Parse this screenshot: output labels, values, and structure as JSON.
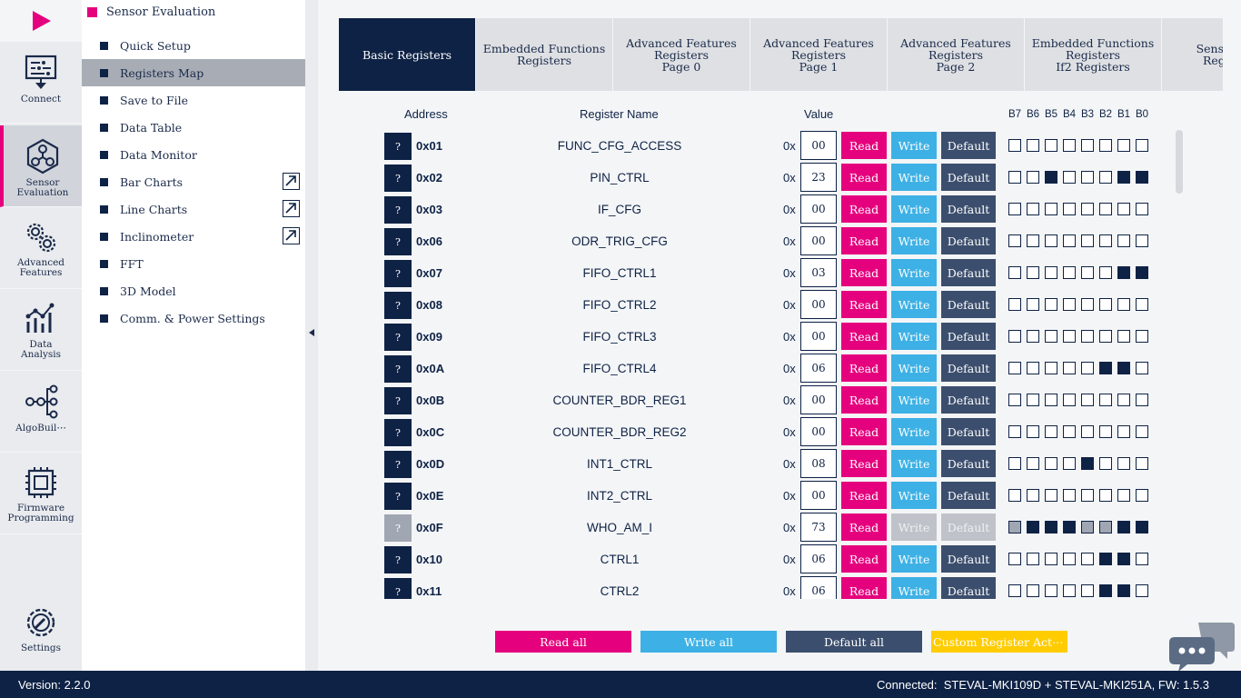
{
  "rail": {
    "items": [
      {
        "label": "Connect",
        "icon": "connect-icon"
      },
      {
        "label": "Sensor\nEvaluation",
        "icon": "sensor-evaluation-icon",
        "active": true
      },
      {
        "label": "Advanced\nFeatures",
        "icon": "gears-icon"
      },
      {
        "label": "Data\nAnalysis",
        "icon": "chart-icon"
      },
      {
        "label": "AlgoBuil⋯",
        "icon": "algobuilder-icon"
      },
      {
        "label": "Firmware\nProgramming",
        "icon": "chip-icon"
      },
      {
        "label": "Settings",
        "icon": "settings-icon"
      }
    ]
  },
  "submenu": {
    "title": "Sensor Evaluation",
    "items": [
      {
        "label": "Quick Setup"
      },
      {
        "label": "Registers Map",
        "active": true
      },
      {
        "label": "Save to File"
      },
      {
        "label": "Data Table"
      },
      {
        "label": "Data Monitor"
      },
      {
        "label": "Bar Charts",
        "external": true
      },
      {
        "label": "Line Charts",
        "external": true
      },
      {
        "label": "Inclinometer",
        "external": true
      },
      {
        "label": "FFT"
      },
      {
        "label": "3D Model"
      },
      {
        "label": "Comm. & Power Settings"
      }
    ]
  },
  "tabs": [
    {
      "label": "Basic Registers",
      "active": true
    },
    {
      "label": "Embedded Functions\nRegisters"
    },
    {
      "label": "Advanced Features\nRegisters\nPage 0"
    },
    {
      "label": "Advanced Features\nRegisters\nPage 1"
    },
    {
      "label": "Advanced Features\nRegisters\nPage 2"
    },
    {
      "label": "Embedded Functions\nRegisters\nIf2 Registers"
    },
    {
      "label": "Sensor Hub\nRegisters"
    }
  ],
  "table": {
    "headers": {
      "address": "Address",
      "name": "Register Name",
      "value": "Value"
    },
    "bit_labels": [
      "B7",
      "B6",
      "B5",
      "B4",
      "B3",
      "B2",
      "B1",
      "B0"
    ],
    "help_label": "?",
    "hex_prefix": "0x",
    "read_label": "Read",
    "write_label": "Write",
    "default_label": "Default",
    "rows": [
      {
        "address": "0x01",
        "name": "FUNC_CFG_ACCESS",
        "value": "00"
      },
      {
        "address": "0x02",
        "name": "PIN_CTRL",
        "value": "23"
      },
      {
        "address": "0x03",
        "name": "IF_CFG",
        "value": "00"
      },
      {
        "address": "0x06",
        "name": "ODR_TRIG_CFG",
        "value": "00"
      },
      {
        "address": "0x07",
        "name": "FIFO_CTRL1",
        "value": "03"
      },
      {
        "address": "0x08",
        "name": "FIFO_CTRL2",
        "value": "00"
      },
      {
        "address": "0x09",
        "name": "FIFO_CTRL3",
        "value": "00"
      },
      {
        "address": "0x0A",
        "name": "FIFO_CTRL4",
        "value": "06"
      },
      {
        "address": "0x0B",
        "name": "COUNTER_BDR_REG1",
        "value": "00"
      },
      {
        "address": "0x0C",
        "name": "COUNTER_BDR_REG2",
        "value": "00"
      },
      {
        "address": "0x0D",
        "name": "INT1_CTRL",
        "value": "08"
      },
      {
        "address": "0x0E",
        "name": "INT2_CTRL",
        "value": "00"
      },
      {
        "address": "0x0F",
        "name": "WHO_AM_I",
        "value": "73",
        "read_only": true
      },
      {
        "address": "0x10",
        "name": "CTRL1",
        "value": "06"
      },
      {
        "address": "0x11",
        "name": "CTRL2",
        "value": "06"
      }
    ]
  },
  "actions": {
    "read_all": "Read all",
    "write_all": "Write all",
    "default_all": "Default all",
    "custom": "Custom Register Act⋯"
  },
  "status": {
    "version": "Version: 2.2.0",
    "connection": "Connected:  STEVAL-MKI109D + STEVAL-MKI251A, FW: 1.5.3"
  },
  "colors": {
    "navy": "#0e2245",
    "magenta": "#e5007d",
    "cyan": "#3db1e5",
    "slate": "#3c4e6d",
    "yellow": "#ffcc00"
  }
}
